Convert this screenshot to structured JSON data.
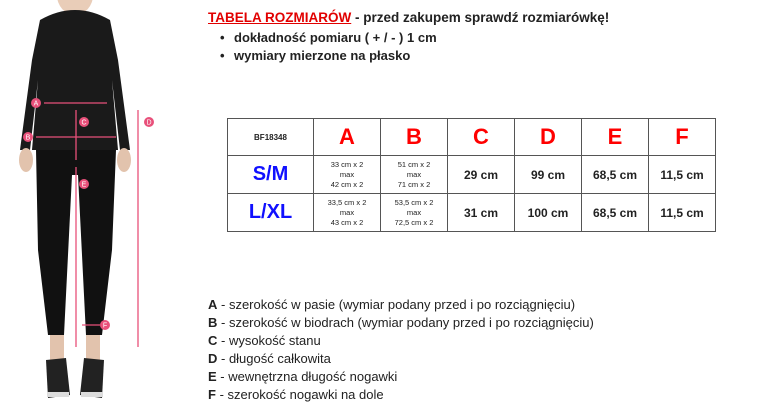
{
  "header": {
    "title": "TABELA ROZMIARÓW",
    "subtitle": " - przed zakupem sprawdź rozmiarówkę!"
  },
  "bullets": [
    "dokładność pomiaru ( + / - ) 1 cm",
    "wymiary mierzone na płasko"
  ],
  "table": {
    "code": "BF18348",
    "columns": [
      "A",
      "B",
      "C",
      "D",
      "E",
      "F"
    ],
    "rows": [
      {
        "size": "S/M",
        "A": [
          "33 cm x 2",
          "max",
          "42 cm x 2"
        ],
        "B": [
          "51 cm x 2",
          "max",
          "71 cm x 2"
        ],
        "C": "29 cm",
        "D": "99 cm",
        "E": "68,5 cm",
        "F": "11,5 cm"
      },
      {
        "size": "L/XL",
        "A": [
          "33,5 cm x 2",
          "max",
          "43 cm x 2"
        ],
        "B": [
          "53,5 cm x 2",
          "max",
          "72,5 cm x 2"
        ],
        "C": "31 cm",
        "D": "100 cm",
        "E": "68,5 cm",
        "F": "11,5 cm"
      }
    ]
  },
  "figure": {
    "markers": [
      "A",
      "B",
      "C",
      "D",
      "E",
      "F"
    ],
    "accent": "#e8507a"
  },
  "legend": [
    {
      "key": "A",
      "text": " - szerokość w pasie (wymiar podany przed i po rozciągnięciu)"
    },
    {
      "key": "B",
      "text": " - szerokość w biodrach (wymiar podany przed i po rozciągnięciu)"
    },
    {
      "key": "C",
      "text": " - wysokość stanu"
    },
    {
      "key": "D",
      "text": " - długość całkowita"
    },
    {
      "key": "E",
      "text": " - wewnętrzna długość nogawki"
    },
    {
      "key": "F",
      "text": " - szerokość nogawki na dole"
    }
  ]
}
